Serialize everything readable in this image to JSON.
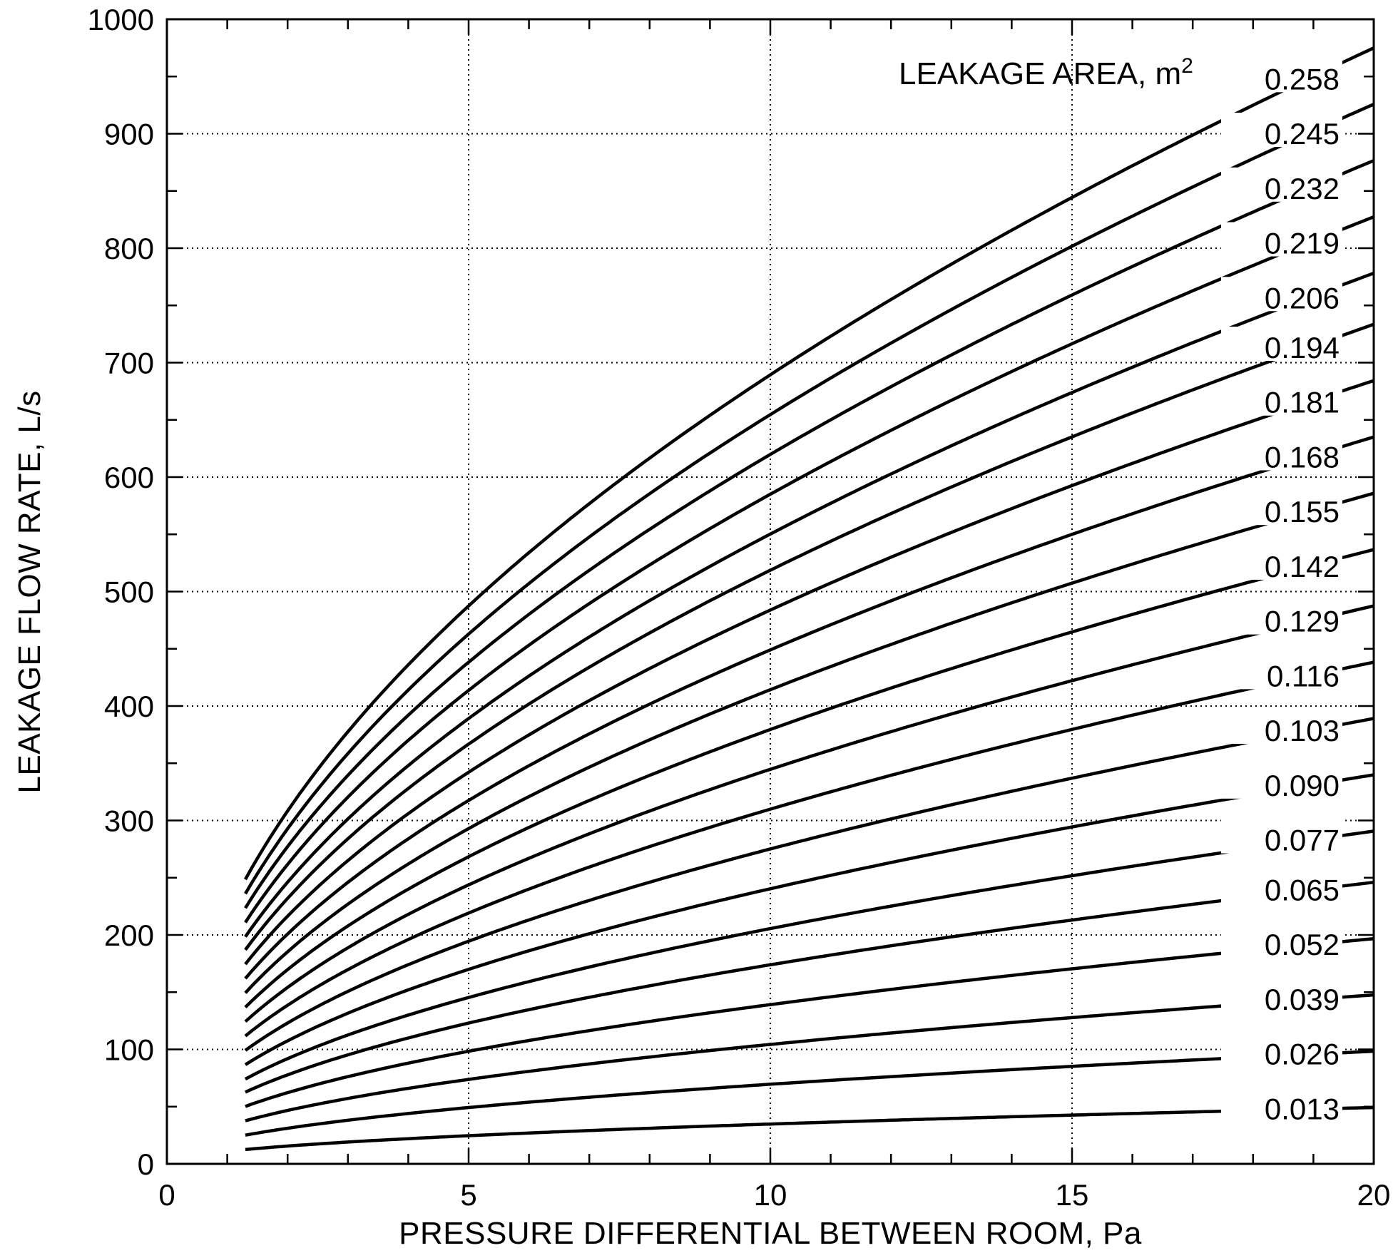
{
  "chart_data": {
    "type": "line",
    "xlabel": "PRESSURE DIFFERENTIAL BETWEEN ROOM, Pa",
    "ylabel": "LEAKAGE FLOW RATE, L/s",
    "legend_title": "LEAKAGE AREA, m",
    "legend_title_sup": "2",
    "xlim": [
      0,
      20
    ],
    "ylim": [
      0,
      1000
    ],
    "x_ticks": [
      "0",
      "5",
      "10",
      "15",
      "20"
    ],
    "y_ticks": [
      "0",
      "100",
      "200",
      "300",
      "400",
      "500",
      "600",
      "700",
      "800",
      "900",
      "1000"
    ],
    "grid": true,
    "legend_position": "right, inline with curves",
    "x_range": [
      1.3,
      20
    ],
    "series": [
      {
        "name": "0.258",
        "y_at_x1": 218
      },
      {
        "name": "0.245",
        "y_at_x1": 207
      },
      {
        "name": "0.232",
        "y_at_x1": 196
      },
      {
        "name": "0.219",
        "y_at_x1": 185
      },
      {
        "name": "0.206",
        "y_at_x1": 174
      },
      {
        "name": "0.194",
        "y_at_x1": 164
      },
      {
        "name": "0.181",
        "y_at_x1": 153
      },
      {
        "name": "0.168",
        "y_at_x1": 142
      },
      {
        "name": "0.155",
        "y_at_x1": 131
      },
      {
        "name": "0.142",
        "y_at_x1": 120
      },
      {
        "name": "0.129",
        "y_at_x1": 109
      },
      {
        "name": "0.116",
        "y_at_x1": 98
      },
      {
        "name": "0.103",
        "y_at_x1": 87
      },
      {
        "name": "0.090",
        "y_at_x1": 76
      },
      {
        "name": "0.077",
        "y_at_x1": 65
      },
      {
        "name": "0.065",
        "y_at_x1": 55
      },
      {
        "name": "0.052",
        "y_at_x1": 44
      },
      {
        "name": "0.039",
        "y_at_x1": 33
      },
      {
        "name": "0.026",
        "y_at_x1": 22
      },
      {
        "name": "0.013",
        "y_at_x1": 11
      }
    ]
  }
}
